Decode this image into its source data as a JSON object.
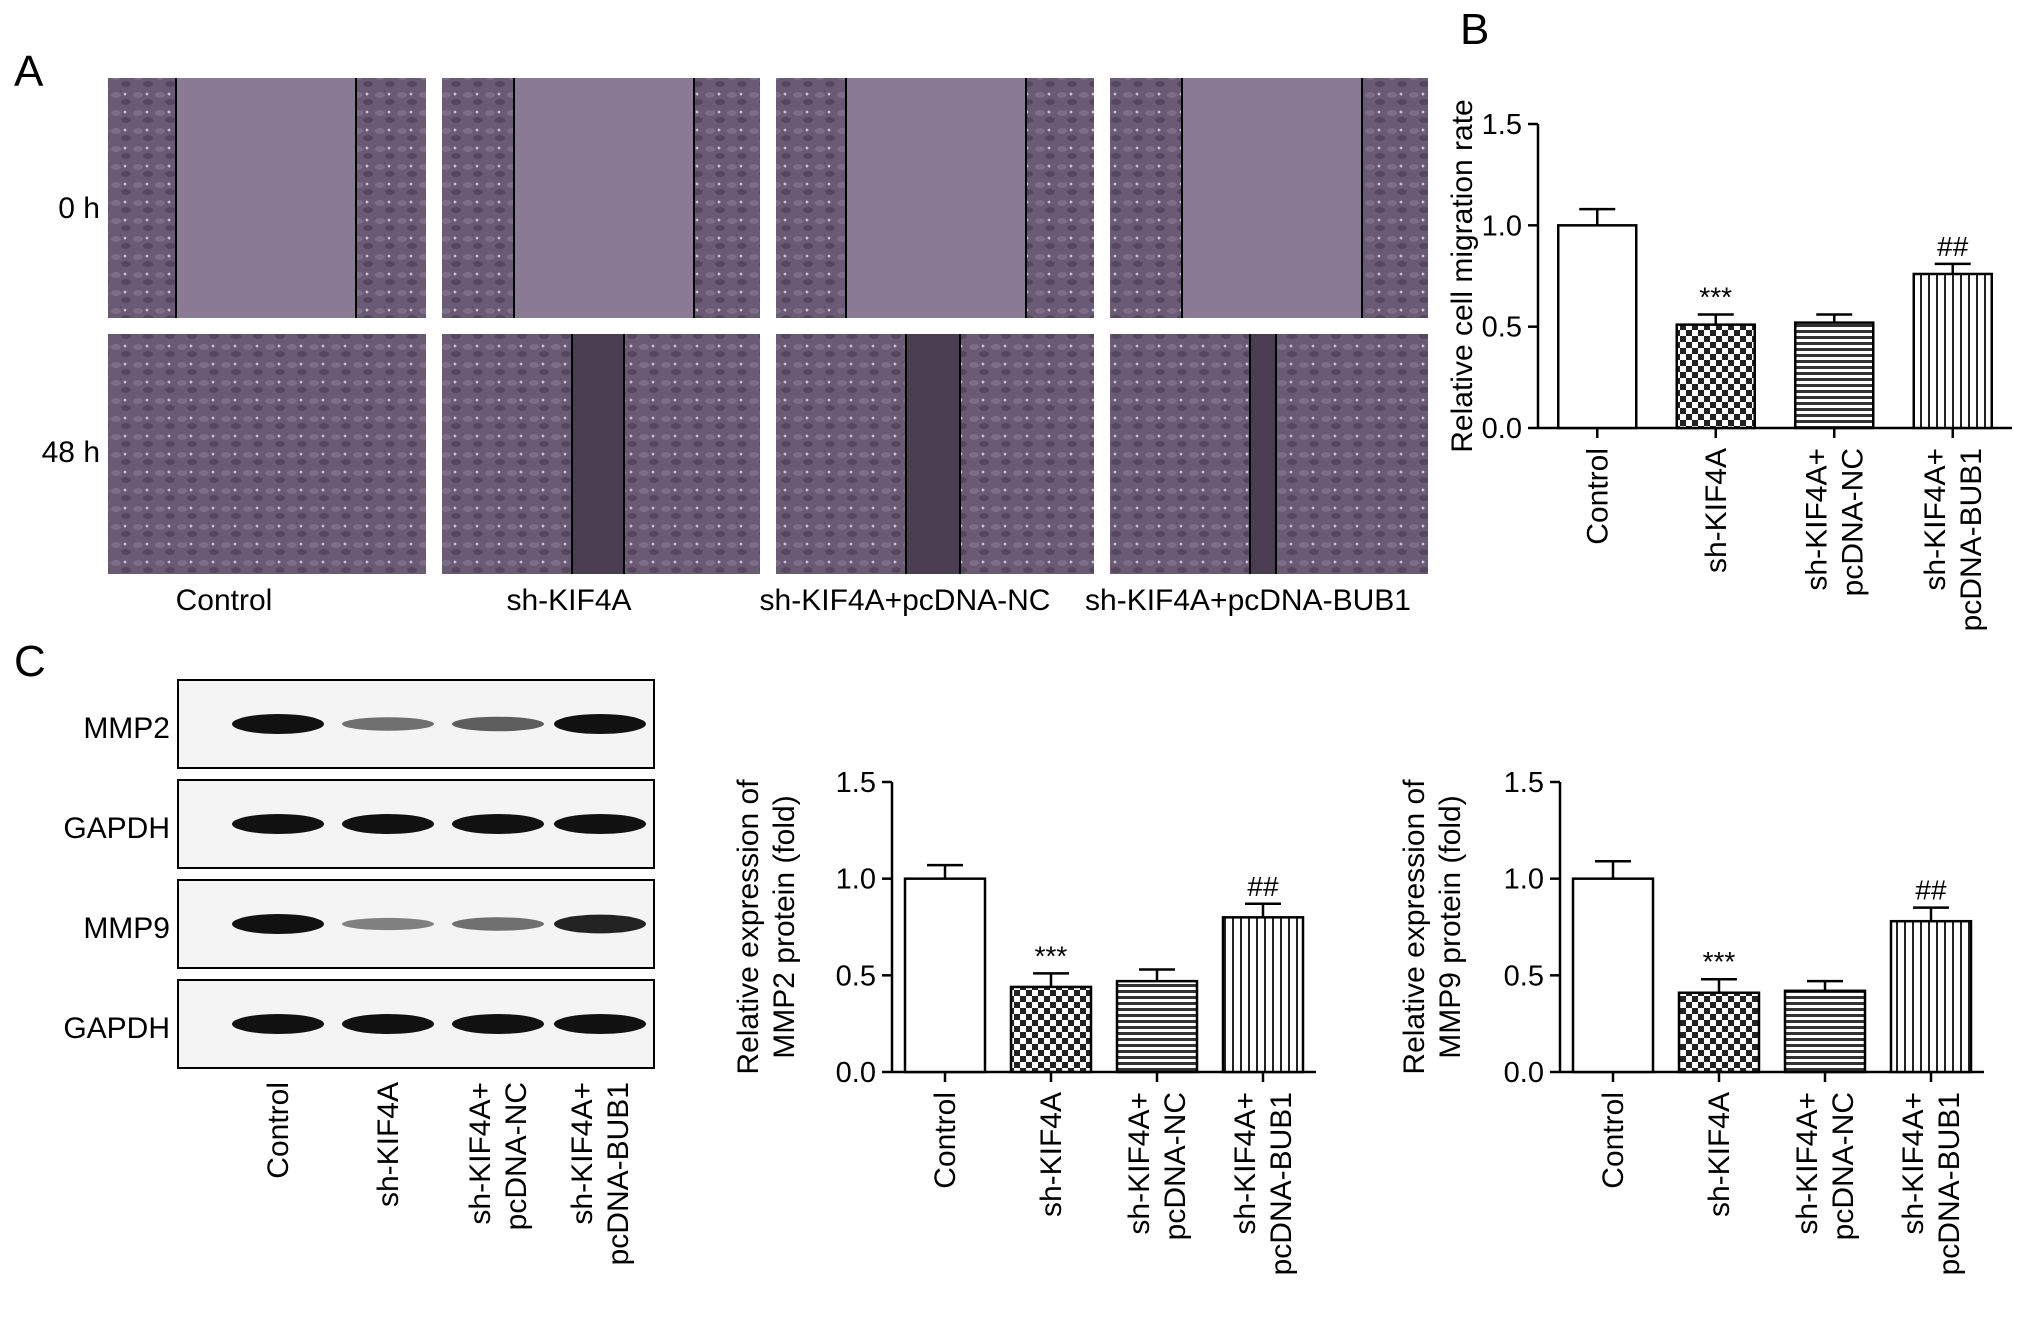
{
  "panel_letters": {
    "a": "A",
    "b": "B",
    "c": "C"
  },
  "panel_a": {
    "row_labels": [
      "0 h",
      "48 h"
    ],
    "column_labels": [
      "Control",
      "sh-KIF4A",
      "sh-KIF4A+pcDNA-NC",
      "sh-KIF4A+pcDNA-BUB1"
    ],
    "image_colors": {
      "open_area": "#8a7a93",
      "cells": "#5f5069",
      "line": "#000000"
    }
  },
  "panel_c_blot": {
    "bands": [
      "MMP2",
      "GAPDH",
      "MMP9",
      "GAPDH"
    ],
    "band_intensity": [
      [
        1.0,
        0.45,
        0.55,
        1.0
      ],
      [
        1.0,
        1.0,
        1.0,
        1.0
      ],
      [
        1.0,
        0.35,
        0.45,
        0.9
      ],
      [
        1.0,
        1.0,
        1.0,
        1.0
      ]
    ],
    "lane_labels": [
      [
        "Control"
      ],
      [
        "sh-KIF4A"
      ],
      [
        "sh-KIF4A+",
        "pcDNA-NC"
      ],
      [
        "sh-KIF4A+",
        "pcDNA-BUB1"
      ]
    ]
  },
  "chart_data": [
    {
      "type": "bar",
      "categories": [
        [
          "Control"
        ],
        [
          "sh-KIF4A"
        ],
        [
          "sh-KIF4A+",
          "pcDNA-NC"
        ],
        [
          "sh-KIF4A+",
          "pcDNA-BUB1"
        ]
      ],
      "values": [
        1.0,
        0.51,
        0.52,
        0.76
      ],
      "errors": [
        0.08,
        0.05,
        0.04,
        0.05
      ],
      "annotations": [
        "",
        "***",
        "",
        "##"
      ],
      "patterns": [
        "white",
        "checker",
        "horizontal",
        "vertical"
      ],
      "ylabel": [
        "Relative cell migration rate"
      ],
      "yticks": [
        "0.0",
        "0.5",
        "1.0",
        "1.5"
      ],
      "ylim": [
        0,
        1.5
      ]
    },
    {
      "type": "bar",
      "categories": [
        [
          "Control"
        ],
        [
          "sh-KIF4A"
        ],
        [
          "sh-KIF4A+",
          "pcDNA-NC"
        ],
        [
          "sh-KIF4A+",
          "pcDNA-BUB1"
        ]
      ],
      "values": [
        1.0,
        0.44,
        0.47,
        0.8
      ],
      "errors": [
        0.07,
        0.07,
        0.06,
        0.07
      ],
      "annotations": [
        "",
        "***",
        "",
        "##"
      ],
      "patterns": [
        "white",
        "checker",
        "horizontal",
        "vertical"
      ],
      "ylabel": [
        "Relative expression of",
        "MMP2 protein (fold)"
      ],
      "yticks": [
        "0.0",
        "0.5",
        "1.0",
        "1.5"
      ],
      "ylim": [
        0,
        1.5
      ]
    },
    {
      "type": "bar",
      "categories": [
        [
          "Control"
        ],
        [
          "sh-KIF4A"
        ],
        [
          "sh-KIF4A+",
          "pcDNA-NC"
        ],
        [
          "sh-KIF4A+",
          "pcDNA-BUB1"
        ]
      ],
      "values": [
        1.0,
        0.41,
        0.42,
        0.78
      ],
      "errors": [
        0.09,
        0.07,
        0.05,
        0.07
      ],
      "annotations": [
        "",
        "***",
        "",
        "##"
      ],
      "patterns": [
        "white",
        "checker",
        "horizontal",
        "vertical"
      ],
      "ylabel": [
        "Relative expression of",
        "MMP9 protein (fold)"
      ],
      "yticks": [
        "0.0",
        "0.5",
        "1.0",
        "1.5"
      ],
      "ylim": [
        0,
        1.5
      ]
    }
  ]
}
